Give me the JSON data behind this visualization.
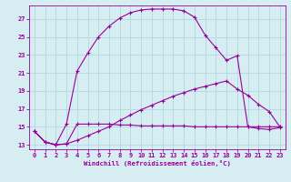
{
  "xlabel": "Windchill (Refroidissement éolien,°C)",
  "ylabel": "",
  "background_color": "#d6eef2",
  "grid_color": "#b0d8e0",
  "line_color": "#990099",
  "xlim": [
    -0.5,
    23.5
  ],
  "ylim": [
    12.5,
    28.5
  ],
  "yticks": [
    13,
    15,
    17,
    19,
    21,
    23,
    25,
    27
  ],
  "xticks": [
    0,
    1,
    2,
    3,
    4,
    5,
    6,
    7,
    8,
    9,
    10,
    11,
    12,
    13,
    14,
    15,
    16,
    17,
    18,
    19,
    20,
    21,
    22,
    23
  ],
  "curve1_x": [
    0,
    1,
    2,
    3,
    4,
    5,
    6,
    7,
    8,
    9,
    10,
    11,
    12,
    13,
    14,
    15,
    16,
    17,
    18,
    19,
    20,
    21,
    22,
    23
  ],
  "curve1_y": [
    14.5,
    13.3,
    13.0,
    13.1,
    15.3,
    15.3,
    15.3,
    15.3,
    15.2,
    15.2,
    15.1,
    15.1,
    15.1,
    15.1,
    15.1,
    15.0,
    15.0,
    15.0,
    15.0,
    15.0,
    15.0,
    15.0,
    15.0,
    15.0
  ],
  "curve2_x": [
    0,
    1,
    2,
    3,
    4,
    5,
    6,
    7,
    8,
    9,
    10,
    11,
    12,
    13,
    14,
    15,
    16,
    17,
    18,
    19,
    20,
    21,
    22,
    23
  ],
  "curve2_y": [
    14.5,
    13.3,
    13.0,
    15.3,
    21.2,
    23.2,
    25.0,
    26.2,
    27.1,
    27.7,
    28.0,
    28.1,
    28.1,
    28.1,
    27.9,
    27.2,
    25.2,
    23.8,
    22.4,
    22.9,
    15.0,
    14.8,
    14.7,
    14.9
  ],
  "curve3_x": [
    0,
    1,
    2,
    3,
    4,
    5,
    6,
    7,
    8,
    9,
    10,
    11,
    12,
    13,
    14,
    15,
    16,
    17,
    18,
    19,
    20,
    21,
    22,
    23
  ],
  "curve3_y": [
    14.5,
    13.3,
    13.0,
    13.1,
    13.5,
    14.0,
    14.5,
    15.0,
    15.7,
    16.3,
    16.9,
    17.4,
    17.9,
    18.4,
    18.8,
    19.2,
    19.5,
    19.8,
    20.1,
    19.2,
    18.5,
    17.5,
    16.7,
    15.0
  ]
}
